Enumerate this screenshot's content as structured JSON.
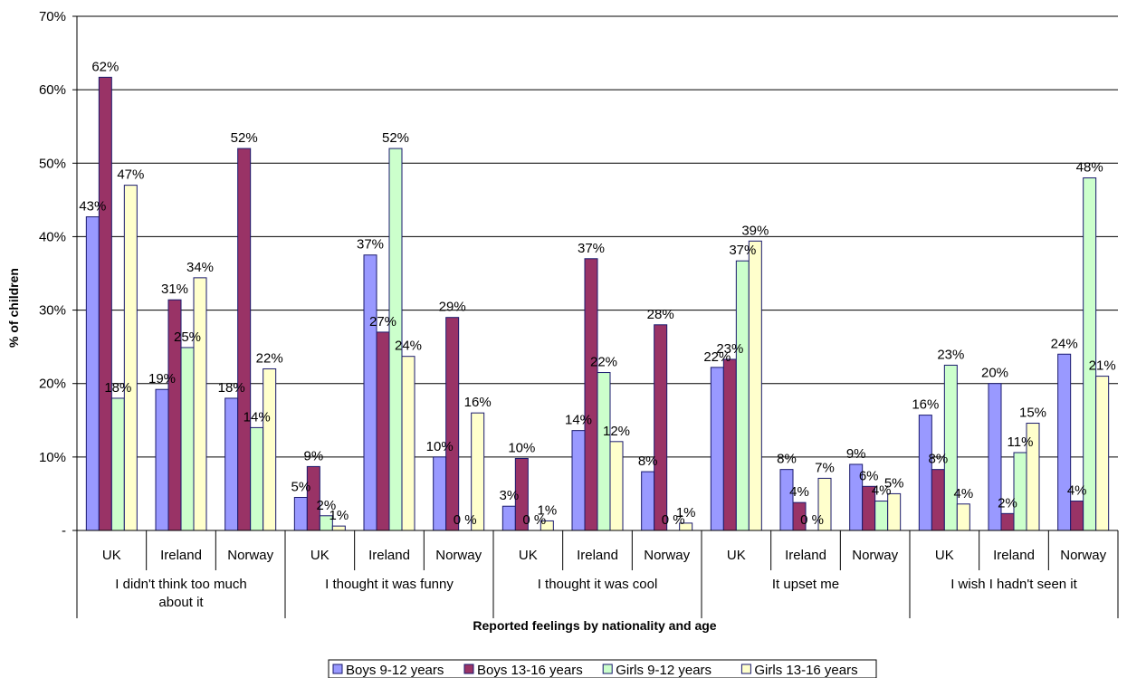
{
  "chart_data": {
    "type": "bar",
    "xlabel": "Reported feelings by nationality and age",
    "ylabel": "% of children",
    "ylim": [
      0,
      70
    ],
    "y_ticks": [
      {
        "value": 0,
        "label": "-"
      },
      {
        "value": 10,
        "label": "10%"
      },
      {
        "value": 20,
        "label": "20%"
      },
      {
        "value": 30,
        "label": "30%"
      },
      {
        "value": 40,
        "label": "40%"
      },
      {
        "value": 50,
        "label": "50%"
      },
      {
        "value": 60,
        "label": "60%"
      },
      {
        "value": 70,
        "label": "70%"
      }
    ],
    "grid": true,
    "legend_position": "bottom",
    "groups": [
      {
        "label": "I didn't think too much about it",
        "categories": [
          "UK",
          "Ireland",
          "Norway"
        ]
      },
      {
        "label": "I thought it was funny",
        "categories": [
          "UK",
          "Ireland",
          "Norway"
        ]
      },
      {
        "label": "I thought it was cool",
        "categories": [
          "UK",
          "Ireland",
          "Norway"
        ]
      },
      {
        "label": "It upset me",
        "categories": [
          "UK",
          "Ireland",
          "Norway"
        ]
      },
      {
        "label": "I wish I hadn't seen it",
        "categories": [
          "UK",
          "Ireland",
          "Norway"
        ]
      }
    ],
    "categories": [
      "UK",
      "Ireland",
      "Norway",
      "UK",
      "Ireland",
      "Norway",
      "UK",
      "Ireland",
      "Norway",
      "UK",
      "Ireland",
      "Norway",
      "UK",
      "Ireland",
      "Norway"
    ],
    "series": [
      {
        "name": "Boys 9-12 years",
        "color": "#9999FF",
        "values": [
          42.7,
          19.2,
          18,
          4.5,
          37.5,
          10,
          3.3,
          13.6,
          8,
          22.2,
          8.3,
          9,
          15.7,
          20,
          24
        ],
        "labels": [
          "43%",
          "19%",
          "18%",
          "5%",
          "37%",
          "10%",
          "3%",
          "14%",
          "8%",
          "22%",
          "8%",
          "9%",
          "16%",
          "20%",
          "24%"
        ]
      },
      {
        "name": "Boys 13-16 years",
        "color": "#993366",
        "values": [
          61.7,
          31.4,
          52,
          8.7,
          27,
          29,
          9.8,
          37,
          28,
          23.3,
          3.8,
          6,
          8.3,
          2.3,
          4
        ],
        "labels": [
          "62%",
          "31%",
          "52%",
          "9%",
          "27%",
          "29%",
          "10%",
          "37%",
          "28%",
          "23%",
          "4%",
          "6%",
          "8%",
          "2%",
          "4%"
        ]
      },
      {
        "name": "Girls 9-12 years",
        "color": "#CCFFCC",
        "values": [
          18,
          24.9,
          14,
          2,
          52,
          0,
          0,
          21.5,
          0,
          36.7,
          0,
          4,
          22.5,
          10.6,
          48
        ],
        "labels": [
          "18%",
          "25%",
          "14%",
          "2%",
          "52%",
          "0 %",
          "0 %",
          "22%",
          "0 %",
          "37%",
          "0 %",
          "4%",
          "23%",
          "11%",
          "48%"
        ]
      },
      {
        "name": "Girls 13-16 years",
        "color": "#FFFFCC",
        "values": [
          47,
          34.4,
          22,
          0.6,
          23.7,
          16,
          1.3,
          12.1,
          1,
          39.4,
          7.1,
          5,
          3.6,
          14.6,
          21
        ],
        "labels": [
          "47%",
          "34%",
          "22%",
          "1%",
          "24%",
          "16%",
          "1%",
          "12%",
          "1%",
          "39%",
          "7%",
          "5%",
          "4%",
          "15%",
          "21%"
        ]
      }
    ]
  }
}
